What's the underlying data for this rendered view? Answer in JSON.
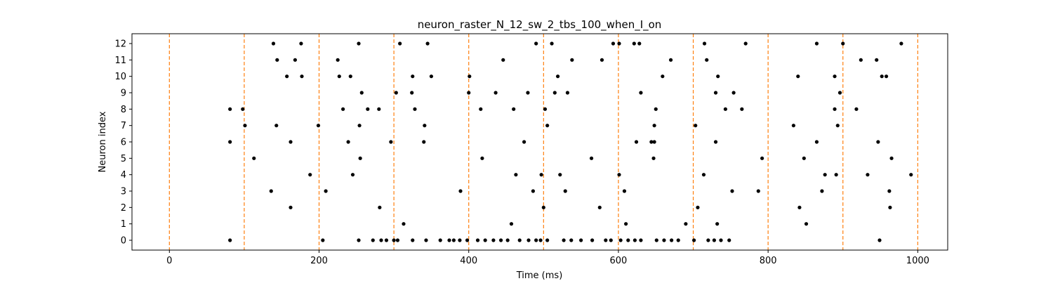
{
  "chart_data": {
    "type": "scatter",
    "title": "neuron_raster_N_12_sw_2_tbs_100_when_I_on",
    "xlabel": "Time (ms)",
    "ylabel": "Neuron index",
    "xlim": [
      -50,
      1040
    ],
    "ylim": [
      -0.6,
      12.6
    ],
    "xticks": [
      0,
      200,
      400,
      600,
      800,
      1000
    ],
    "yticks": [
      0,
      1,
      2,
      3,
      4,
      5,
      6,
      7,
      8,
      9,
      10,
      11,
      12
    ],
    "grid": false,
    "legend": "none",
    "marker_color": "#000000",
    "vline_color": "#ff7f0e",
    "vlines": [
      0,
      100,
      200,
      300,
      400,
      500,
      600,
      700,
      800,
      900,
      1000
    ],
    "series": [
      {
        "points": [
          [
            81,
            0
          ],
          [
            81,
            6
          ],
          [
            81,
            8
          ],
          [
            98,
            8
          ],
          [
            101,
            7
          ],
          [
            113,
            5
          ],
          [
            136,
            3
          ],
          [
            139,
            12
          ],
          [
            143,
            7
          ],
          [
            144,
            11
          ],
          [
            157,
            10
          ],
          [
            162,
            6
          ],
          [
            162,
            2
          ],
          [
            168,
            11
          ],
          [
            176,
            12
          ],
          [
            177,
            10
          ],
          [
            188,
            4
          ],
          [
            199,
            7
          ],
          [
            205,
            0
          ],
          [
            209,
            3
          ],
          [
            225,
            11
          ],
          [
            227,
            10
          ],
          [
            232,
            8
          ],
          [
            239,
            6
          ],
          [
            242,
            10
          ],
          [
            245,
            4
          ],
          [
            253,
            0
          ],
          [
            253,
            12
          ],
          [
            254,
            7
          ],
          [
            255,
            5
          ],
          [
            257,
            9
          ],
          [
            265,
            8
          ],
          [
            272,
            0
          ],
          [
            280,
            8
          ],
          [
            281,
            2
          ],
          [
            283,
            0
          ],
          [
            290,
            0
          ],
          [
            296,
            6
          ],
          [
            300,
            0
          ],
          [
            303,
            9
          ],
          [
            305,
            0
          ],
          [
            308,
            12
          ],
          [
            313,
            1
          ],
          [
            324,
            9
          ],
          [
            325,
            10
          ],
          [
            325,
            0
          ],
          [
            328,
            8
          ],
          [
            340,
            6
          ],
          [
            341,
            7
          ],
          [
            343,
            0
          ],
          [
            345,
            12
          ],
          [
            350,
            10
          ],
          [
            362,
            0
          ],
          [
            374,
            0
          ],
          [
            380,
            0
          ],
          [
            388,
            0
          ],
          [
            389,
            3
          ],
          [
            398,
            0
          ],
          [
            400,
            9
          ],
          [
            401,
            10
          ],
          [
            412,
            0
          ],
          [
            416,
            8
          ],
          [
            418,
            5
          ],
          [
            422,
            0
          ],
          [
            433,
            0
          ],
          [
            436,
            9
          ],
          [
            443,
            0
          ],
          [
            446,
            11
          ],
          [
            452,
            0
          ],
          [
            457,
            1
          ],
          [
            460,
            8
          ],
          [
            463,
            4
          ],
          [
            468,
            0
          ],
          [
            474,
            6
          ],
          [
            479,
            9
          ],
          [
            480,
            0
          ],
          [
            486,
            3
          ],
          [
            490,
            0
          ],
          [
            490,
            12
          ],
          [
            496,
            0
          ],
          [
            497,
            4
          ],
          [
            500,
            2
          ],
          [
            502,
            8
          ],
          [
            505,
            0
          ],
          [
            505,
            7
          ],
          [
            511,
            12
          ],
          [
            515,
            9
          ],
          [
            519,
            10
          ],
          [
            522,
            4
          ],
          [
            527,
            0
          ],
          [
            529,
            3
          ],
          [
            532,
            9
          ],
          [
            537,
            0
          ],
          [
            538,
            11
          ],
          [
            550,
            0
          ],
          [
            564,
            5
          ],
          [
            565,
            0
          ],
          [
            575,
            2
          ],
          [
            578,
            11
          ],
          [
            583,
            0
          ],
          [
            590,
            0
          ],
          [
            593,
            12
          ],
          [
            601,
            4
          ],
          [
            601,
            12
          ],
          [
            603,
            0
          ],
          [
            608,
            3
          ],
          [
            610,
            1
          ],
          [
            613,
            0
          ],
          [
            622,
            0
          ],
          [
            621,
            12
          ],
          [
            624,
            6
          ],
          [
            628,
            12
          ],
          [
            630,
            0
          ],
          [
            630,
            9
          ],
          [
            644,
            6
          ],
          [
            647,
            5
          ],
          [
            648,
            7
          ],
          [
            648,
            6
          ],
          [
            650,
            8
          ],
          [
            651,
            0
          ],
          [
            659,
            10
          ],
          [
            661,
            0
          ],
          [
            670,
            11
          ],
          [
            671,
            0
          ],
          [
            680,
            0
          ],
          [
            690,
            1
          ],
          [
            701,
            0
          ],
          [
            703,
            7
          ],
          [
            706,
            2
          ],
          [
            714,
            4
          ],
          [
            715,
            12
          ],
          [
            718,
            11
          ],
          [
            720,
            0
          ],
          [
            728,
            0
          ],
          [
            730,
            6
          ],
          [
            730,
            9
          ],
          [
            732,
            1
          ],
          [
            733,
            10
          ],
          [
            737,
            0
          ],
          [
            743,
            8
          ],
          [
            748,
            0
          ],
          [
            752,
            3
          ],
          [
            754,
            9
          ],
          [
            765,
            8
          ],
          [
            770,
            12
          ],
          [
            787,
            3
          ],
          [
            792,
            5
          ],
          [
            834,
            7
          ],
          [
            840,
            10
          ],
          [
            842,
            2
          ],
          [
            848,
            5
          ],
          [
            851,
            1
          ],
          [
            865,
            6
          ],
          [
            865,
            12
          ],
          [
            872,
            3
          ],
          [
            876,
            4
          ],
          [
            889,
            8
          ],
          [
            889,
            10
          ],
          [
            891,
            4
          ],
          [
            893,
            7
          ],
          [
            896,
            9
          ],
          [
            900,
            12
          ],
          [
            918,
            8
          ],
          [
            924,
            11
          ],
          [
            933,
            4
          ],
          [
            945,
            11
          ],
          [
            947,
            6
          ],
          [
            949,
            0
          ],
          [
            952,
            10
          ],
          [
            958,
            10
          ],
          [
            962,
            3
          ],
          [
            963,
            2
          ],
          [
            965,
            5
          ],
          [
            978,
            12
          ],
          [
            991,
            4
          ]
        ]
      }
    ]
  }
}
